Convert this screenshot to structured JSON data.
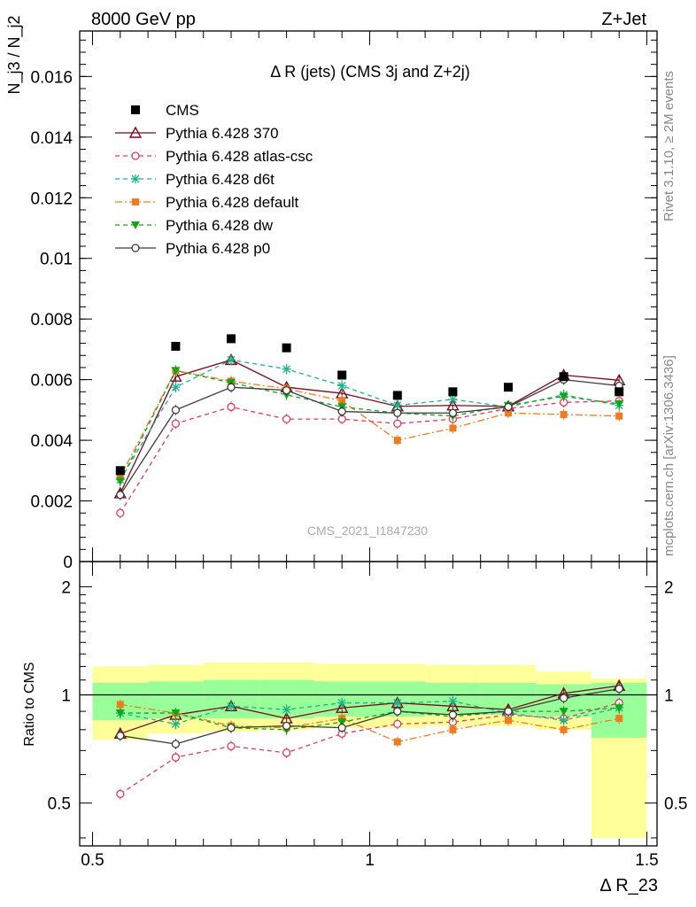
{
  "header": {
    "left": "8000 GeV pp",
    "right": "Z+Jet"
  },
  "side_labels": {
    "rivet": "Rivet 3.1.10, ≥ 2M events",
    "mcplots": "mcplots.cern.ch [arXiv:1306.3436]"
  },
  "watermark": "CMS_2021_I1847230",
  "chart_data": {
    "type": "scatter",
    "title": "Δ R (jets) (CMS 3j and Z+2j)",
    "ylabel_main": "N_j3 / N_j2",
    "ylabel_ratio": "Ratio to CMS",
    "xlabel": "Δ R_23",
    "xlim": [
      0.5,
      1.5
    ],
    "ylim_main": [
      0,
      0.0175
    ],
    "ylim_ratio": [
      0.38,
      2.35
    ],
    "ratio_scale": "log",
    "x_ticks": [
      "0.5",
      "1",
      "1.5"
    ],
    "y_ticks_main": [
      "0",
      "0.002",
      "0.004",
      "0.006",
      "0.008",
      "0.01",
      "0.012",
      "0.014",
      "0.016"
    ],
    "y_ticks_ratio": [
      "0.5",
      "1",
      "2"
    ],
    "x": [
      0.55,
      0.65,
      0.75,
      0.85,
      0.95,
      1.05,
      1.15,
      1.25,
      1.35,
      1.45
    ],
    "data": {
      "name": "CMS",
      "values": [
        0.003,
        0.0071,
        0.00735,
        0.00705,
        0.00615,
        0.00548,
        0.0056,
        0.00575,
        0.0061,
        0.0056
      ],
      "band_inner": [
        [
          0.85,
          1.08
        ],
        [
          0.86,
          1.09
        ],
        [
          0.86,
          1.1
        ],
        [
          0.86,
          1.1
        ],
        [
          0.87,
          1.09
        ],
        [
          0.87,
          1.09
        ],
        [
          0.88,
          1.08
        ],
        [
          0.88,
          1.08
        ],
        [
          0.87,
          1.07
        ],
        [
          0.76,
          1.08
        ]
      ],
      "band_outer": [
        [
          0.75,
          1.2
        ],
        [
          0.78,
          1.21
        ],
        [
          0.79,
          1.23
        ],
        [
          0.8,
          1.23
        ],
        [
          0.81,
          1.22
        ],
        [
          0.81,
          1.22
        ],
        [
          0.82,
          1.21
        ],
        [
          0.82,
          1.21
        ],
        [
          0.8,
          1.16
        ],
        [
          0.4,
          1.11
        ]
      ]
    },
    "series": [
      {
        "name": "Pythia 6.428 370",
        "color": "#7a0a1e",
        "dash": "",
        "marker": "triangle-open",
        "values": [
          0.00225,
          0.0061,
          0.00665,
          0.00575,
          0.00555,
          0.00512,
          0.00515,
          0.00512,
          0.00615,
          0.00598
        ],
        "ratio": [
          0.78,
          0.88,
          0.93,
          0.86,
          0.92,
          0.95,
          0.93,
          0.91,
          1.01,
          1.06
        ]
      },
      {
        "name": "Pythia 6.428 atlas-csc",
        "color": "#e8385c",
        "dash": "5,4",
        "marker": "circle-open",
        "values": [
          0.0016,
          0.00455,
          0.0051,
          0.0047,
          0.0047,
          0.00455,
          0.0047,
          0.00505,
          0.00525,
          0.0053
        ],
        "ratio": [
          0.53,
          0.67,
          0.72,
          0.69,
          0.78,
          0.83,
          0.84,
          0.88,
          0.86,
          0.95
        ]
      },
      {
        "name": "Pythia 6.428 d6t",
        "color": "#19b58b",
        "dash": "5,4",
        "marker": "star",
        "values": [
          0.0027,
          0.00575,
          0.00665,
          0.00635,
          0.0058,
          0.00515,
          0.00535,
          0.0051,
          0.0055,
          0.00515
        ],
        "ratio": [
          0.89,
          0.83,
          0.93,
          0.91,
          0.95,
          0.95,
          0.96,
          0.89,
          0.85,
          0.92
        ]
      },
      {
        "name": "Pythia 6.428 default",
        "color": "#f07c22",
        "dash": "8,3,2,3",
        "marker": "square",
        "values": [
          0.0028,
          0.0063,
          0.00595,
          0.0057,
          0.0053,
          0.004,
          0.0044,
          0.0049,
          0.00485,
          0.0048
        ],
        "ratio": [
          0.94,
          0.89,
          0.82,
          0.81,
          0.86,
          0.74,
          0.8,
          0.85,
          0.8,
          0.86
        ]
      },
      {
        "name": "Pythia 6.428 dw",
        "color": "#17a31a",
        "dash": "5,4",
        "marker": "triangle-down",
        "values": [
          0.00265,
          0.0063,
          0.0059,
          0.0055,
          0.0051,
          0.0049,
          0.0048,
          0.00515,
          0.00545,
          0.0052
        ],
        "ratio": [
          0.89,
          0.89,
          0.81,
          0.8,
          0.84,
          0.9,
          0.87,
          0.9,
          0.9,
          0.92
        ]
      },
      {
        "name": "Pythia 6.428 p0",
        "color": "#3a3a3a",
        "dash": "",
        "marker": "circle-open",
        "values": [
          0.0022,
          0.005,
          0.00575,
          0.00565,
          0.00495,
          0.0049,
          0.0049,
          0.0051,
          0.006,
          0.0058
        ],
        "ratio": [
          0.77,
          0.73,
          0.81,
          0.82,
          0.81,
          0.9,
          0.88,
          0.9,
          0.98,
          1.04
        ]
      }
    ]
  }
}
